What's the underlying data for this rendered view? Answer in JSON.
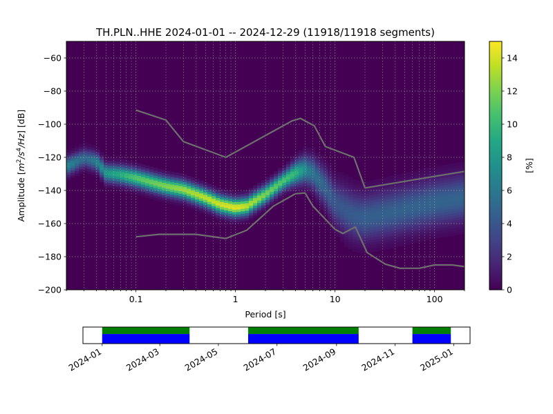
{
  "chart_data": [
    {
      "type": "heatmap",
      "title": "TH.PLN..HHE   2024-01-01 -- 2024-12-29  (11918/11918 segments)",
      "xlabel": "Period [s]",
      "ylabel_parts": [
        "Amplitude [",
        "m",
        "2",
        "/s",
        "4",
        "/Hz",
        "] [dB]"
      ],
      "x_scale": "log",
      "xlim": [
        0.02,
        200
      ],
      "ylim": [
        -200,
        -50
      ],
      "x_ticks": [
        0.1,
        1,
        10,
        100
      ],
      "x_tick_labels": [
        "0.1",
        "1",
        "10",
        "100"
      ],
      "y_ticks": [
        -200,
        -180,
        -160,
        -140,
        -120,
        -100,
        -80,
        -60
      ],
      "y_tick_labels": [
        "−200",
        "−180",
        "−160",
        "−140",
        "−120",
        "−100",
        "−80",
        "−60"
      ],
      "grid": true,
      "colormap": "viridis",
      "colorbar": {
        "label": "[%]",
        "range": [
          0,
          15
        ],
        "ticks": [
          0,
          2,
          4,
          6,
          8,
          10,
          12,
          14
        ],
        "tick_labels": [
          "0",
          "2",
          "4",
          "6",
          "8",
          "10",
          "12",
          "14"
        ]
      },
      "mode_curve": {
        "period": [
          0.02,
          0.03,
          0.04,
          0.05,
          0.07,
          0.1,
          0.15,
          0.2,
          0.3,
          0.5,
          0.7,
          1.0,
          1.3,
          2.0,
          3.0,
          4.0,
          5.0,
          6.0,
          8.0,
          10.0,
          13.0,
          16.0,
          20.0,
          30.0,
          50.0,
          100.0,
          200.0
        ],
        "db": [
          -126,
          -121,
          -123,
          -130,
          -131,
          -133,
          -136,
          -138,
          -140,
          -145,
          -149,
          -151,
          -150,
          -143,
          -135,
          -130,
          -128,
          -130,
          -139,
          -148,
          -153,
          -156,
          -157,
          -155,
          -152,
          -148,
          -145
        ]
      },
      "series": [
        {
          "name": "",
          "period": [
            0.1,
            0.2,
            0.3,
            0.8,
            3.7,
            4.5,
            6.2,
            8.0,
            15.5,
            20.0,
            200.0
          ],
          "db": [
            -91.5,
            -97.5,
            -110.5,
            -120,
            -98,
            -96.5,
            -101,
            -113.5,
            -120,
            -138.5,
            -128.5
          ]
        },
        {
          "name": "",
          "period": [
            0.1,
            0.17,
            0.4,
            0.8,
            1.3,
            2.4,
            4.0,
            5.0,
            6.0,
            10.0,
            12.0,
            16.0,
            21.0,
            32.0,
            45.0,
            70.0,
            100.0,
            150.0,
            200.0
          ],
          "db": [
            -168,
            -166.5,
            -166.5,
            -169,
            -164,
            -149.5,
            -142,
            -141.5,
            -149.5,
            -163.5,
            -166,
            -162,
            -177.5,
            -184.5,
            -187,
            -187,
            -185,
            -185,
            -186
          ]
        }
      ]
    },
    {
      "type": "timeline",
      "x_ticks": [
        "2024-01-01",
        "2024-03-01",
        "2024-05-01",
        "2024-07-01",
        "2024-09-01",
        "2024-11-01",
        "2025-01-01"
      ],
      "x_tick_labels": [
        "2024-01",
        "2024-03",
        "2024-05",
        "2024-07",
        "2024-09",
        "2024-11",
        "2025-01"
      ],
      "xlim": [
        "2023-12-12",
        "2025-01-18"
      ],
      "coverage_intervals": [
        [
          "2024-01-01",
          "2024-04-01"
        ],
        [
          "2024-06-01",
          "2024-09-24"
        ],
        [
          "2024-11-19",
          "2024-12-29"
        ]
      ],
      "colors": {
        "processed": "#008000",
        "data": "#0000ff",
        "gap": "#ff0000"
      }
    }
  ]
}
